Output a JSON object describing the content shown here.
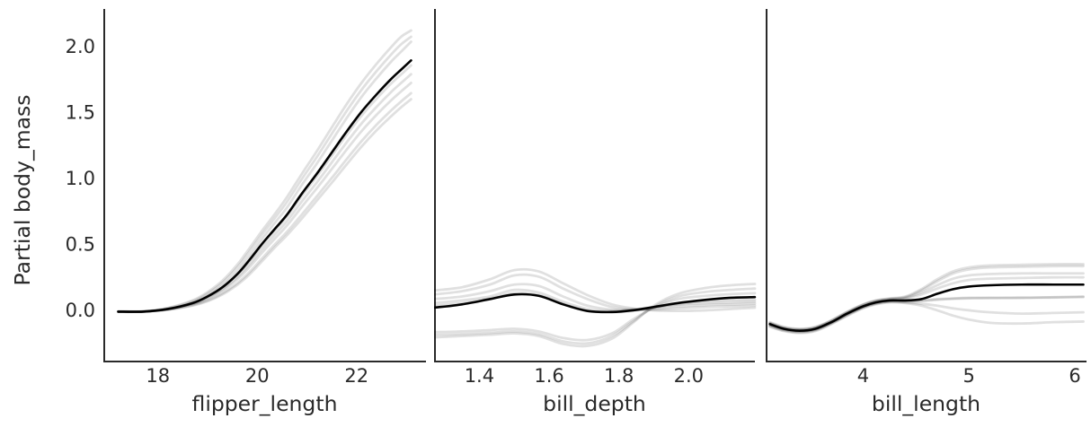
{
  "colors": {
    "background": "#ffffff",
    "text": "#2a2a2a",
    "spine": "#2a2a2a",
    "mean_line": "#000000",
    "ice_line": "rgba(0,0,0,0.12)"
  },
  "chart_data": {
    "type": "line",
    "chart_kind": "partial-dependence-with-ice-curves",
    "ylabel": "Partial body_mass",
    "ylim": [
      -0.4,
      2.28
    ],
    "yticks": [
      0.0,
      0.5,
      1.0,
      1.5,
      2.0
    ],
    "ytick_labels": [
      "0.0",
      "0.5",
      "1.0",
      "1.5",
      "2.0"
    ],
    "grid": "off",
    "legend": "none",
    "panels": [
      {
        "xlabel": "flipper_length",
        "xlim": [
          16.9,
          23.4
        ],
        "xticks": [
          18,
          20,
          22
        ],
        "xtick_labels": [
          "18",
          "20",
          "22"
        ],
        "x": [
          17.2,
          17.7,
          18.2,
          18.7,
          19.0,
          19.3,
          19.6,
          19.85,
          20.1,
          20.35,
          20.6,
          20.9,
          21.2,
          21.5,
          21.8,
          22.1,
          22.4,
          22.7,
          22.9,
          23.1
        ],
        "mean": [
          -0.015,
          -0.015,
          0.005,
          0.05,
          0.1,
          0.17,
          0.27,
          0.38,
          0.5,
          0.61,
          0.72,
          0.88,
          1.03,
          1.19,
          1.35,
          1.5,
          1.63,
          1.75,
          1.82,
          1.89
        ],
        "ice_mode": "scaled",
        "ice_scaled": [
          {
            "amp": 1.12,
            "shift": -0.08
          },
          {
            "amp": 1.095,
            "shift": -0.05
          },
          {
            "amp": 1.075,
            "shift": 0.0
          },
          {
            "amp": 0.98,
            "shift": 0.0
          },
          {
            "amp": 0.95,
            "shift": 0.03
          },
          {
            "amp": 0.92,
            "shift": 0.06
          },
          {
            "amp": 0.89,
            "shift": 0.13
          },
          {
            "amp": 0.87,
            "shift": 0.16
          }
        ]
      },
      {
        "xlabel": "bill_depth",
        "xlim": [
          1.27,
          2.19
        ],
        "xticks": [
          1.4,
          1.6,
          1.8,
          2.0
        ],
        "xtick_labels": [
          "1.4",
          "1.6",
          "1.8",
          "2.0"
        ],
        "x": [
          1.27,
          1.35,
          1.43,
          1.5,
          1.57,
          1.64,
          1.71,
          1.78,
          1.84,
          1.9,
          1.97,
          2.05,
          2.12,
          2.19
        ],
        "mean": [
          0.015,
          0.04,
          0.08,
          0.115,
          0.105,
          0.04,
          -0.01,
          -0.018,
          -0.005,
          0.02,
          0.05,
          0.075,
          0.09,
          0.095
        ],
        "ice_mode": "explicit",
        "ice": [
          {
            "y": [
              0.145,
              0.17,
              0.23,
              0.3,
              0.29,
              0.2,
              0.11,
              0.04,
              0.01,
              -0.005,
              -0.01,
              -0.005,
              0.005,
              0.015
            ]
          },
          {
            "y": [
              0.115,
              0.14,
              0.19,
              0.26,
              0.25,
              0.16,
              0.08,
              0.02,
              0.0,
              0.0,
              0.01,
              0.02,
              0.025,
              0.03
            ]
          },
          {
            "y": [
              0.08,
              0.1,
              0.14,
              0.19,
              0.18,
              0.1,
              0.03,
              0.0,
              0.0,
              0.01,
              0.025,
              0.035,
              0.04,
              0.045
            ]
          },
          {
            "y": [
              0.05,
              0.07,
              0.1,
              0.15,
              0.13,
              0.06,
              0.005,
              -0.01,
              0.0,
              0.02,
              0.04,
              0.05,
              0.055,
              0.06
            ]
          },
          {
            "y": [
              0.03,
              0.05,
              0.085,
              0.125,
              0.11,
              0.045,
              -0.01,
              -0.02,
              -0.01,
              0.015,
              0.045,
              0.065,
              0.072,
              0.075
            ]
          },
          {
            "y": [
              -0.21,
              -0.2,
              -0.19,
              -0.18,
              -0.2,
              -0.26,
              -0.275,
              -0.22,
              -0.1,
              0.03,
              0.12,
              0.165,
              0.185,
              0.195
            ]
          },
          {
            "y": [
              -0.19,
              -0.185,
              -0.175,
              -0.165,
              -0.185,
              -0.24,
              -0.255,
              -0.2,
              -0.09,
              0.02,
              0.1,
              0.135,
              0.15,
              0.16
            ]
          },
          {
            "y": [
              -0.17,
              -0.165,
              -0.155,
              -0.145,
              -0.165,
              -0.215,
              -0.23,
              -0.18,
              -0.075,
              0.015,
              0.08,
              0.105,
              0.118,
              0.125
            ]
          }
        ]
      },
      {
        "xlabel": "bill_length",
        "xlim": [
          3.08,
          6.11
        ],
        "xticks": [
          4,
          5,
          6
        ],
        "xtick_labels": [
          "4",
          "5",
          "6"
        ],
        "x": [
          3.12,
          3.25,
          3.4,
          3.55,
          3.7,
          3.85,
          4.0,
          4.12,
          4.25,
          4.4,
          4.55,
          4.7,
          4.85,
          5.0,
          5.2,
          5.5,
          5.8,
          6.08
        ],
        "mean": [
          -0.11,
          -0.145,
          -0.16,
          -0.145,
          -0.095,
          -0.03,
          0.025,
          0.055,
          0.07,
          0.07,
          0.08,
          0.12,
          0.155,
          0.175,
          0.185,
          0.19,
          0.19,
          0.19
        ],
        "ice_mode": "explicit",
        "ice": [
          {
            "y": [
              -0.095,
              -0.13,
              -0.145,
              -0.13,
              -0.08,
              -0.015,
              0.04,
              0.07,
              0.085,
              0.1,
              0.155,
              0.23,
              0.29,
              0.32,
              0.335,
              0.34,
              0.345,
              0.345
            ]
          },
          {
            "y": [
              -0.1,
              -0.135,
              -0.15,
              -0.135,
              -0.085,
              -0.02,
              0.038,
              0.068,
              0.082,
              0.095,
              0.145,
              0.215,
              0.275,
              0.305,
              0.32,
              0.325,
              0.33,
              0.33
            ]
          },
          {
            "y": [
              -0.105,
              -0.14,
              -0.15,
              -0.135,
              -0.085,
              -0.02,
              0.035,
              0.065,
              0.08,
              0.09,
              0.13,
              0.185,
              0.235,
              0.26,
              0.27,
              0.275,
              0.275,
              0.275
            ]
          },
          {
            "y": [
              -0.105,
              -0.14,
              -0.155,
              -0.14,
              -0.09,
              -0.025,
              0.03,
              0.06,
              0.075,
              0.085,
              0.115,
              0.16,
              0.2,
              0.225,
              0.235,
              0.24,
              0.245,
              0.245
            ]
          },
          {
            "y": [
              -0.115,
              -0.15,
              -0.165,
              -0.15,
              -0.1,
              -0.035,
              0.02,
              0.05,
              0.065,
              0.065,
              0.07,
              0.08,
              0.085,
              0.09,
              0.09,
              0.09,
              0.095,
              0.1
            ]
          },
          {
            "y": [
              -0.12,
              -0.153,
              -0.168,
              -0.152,
              -0.102,
              -0.038,
              0.018,
              0.048,
              0.062,
              0.06,
              0.065,
              0.075,
              0.082,
              0.086,
              0.088,
              0.09,
              0.092,
              0.095
            ]
          },
          {
            "y": [
              -0.125,
              -0.158,
              -0.172,
              -0.157,
              -0.105,
              -0.042,
              0.015,
              0.045,
              0.06,
              0.055,
              0.045,
              0.03,
              0.01,
              -0.005,
              -0.02,
              -0.03,
              -0.025,
              -0.02
            ]
          },
          {
            "y": [
              -0.13,
              -0.162,
              -0.177,
              -0.162,
              -0.11,
              -0.047,
              0.01,
              0.04,
              0.055,
              0.05,
              0.03,
              -0.005,
              -0.045,
              -0.075,
              -0.1,
              -0.105,
              -0.095,
              -0.09
            ]
          }
        ]
      }
    ]
  }
}
